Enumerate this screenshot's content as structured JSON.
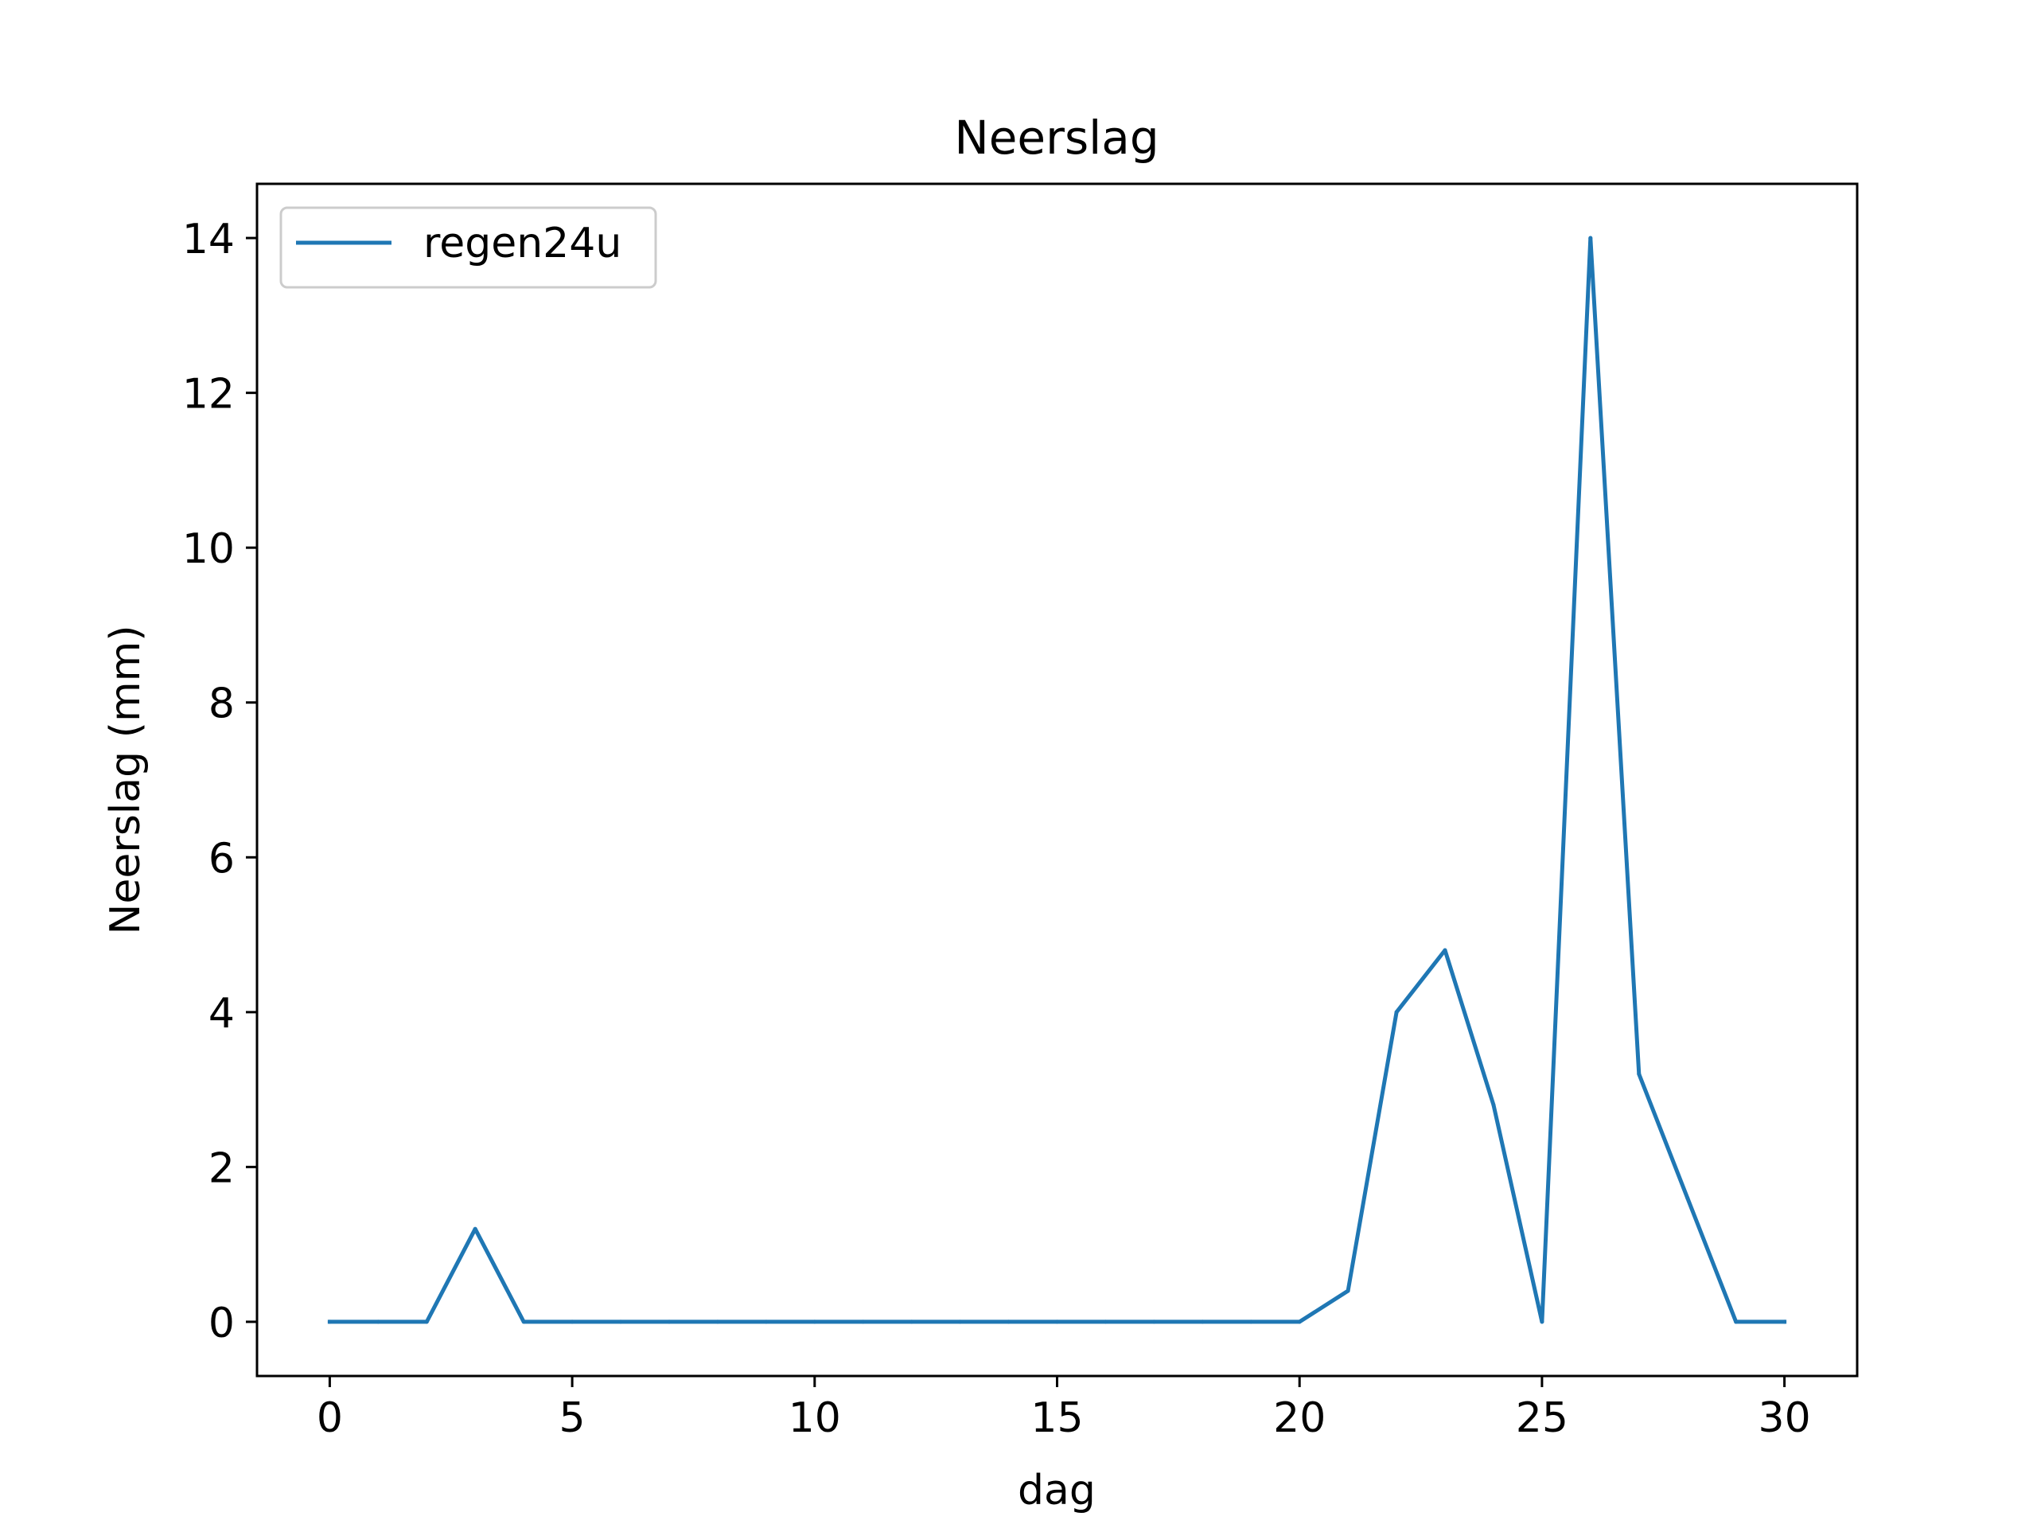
{
  "chart_data": {
    "type": "line",
    "title": "Neerslag",
    "xlabel": "dag",
    "ylabel": "Neerslag (mm)",
    "xlim": [
      -1.5,
      31.5
    ],
    "ylim": [
      -0.7,
      14.7
    ],
    "xticks": [
      0,
      5,
      10,
      15,
      20,
      25,
      30
    ],
    "xtick_labels": [
      "0",
      "5",
      "10",
      "15",
      "20",
      "25",
      "30"
    ],
    "yticks": [
      0,
      2,
      4,
      6,
      8,
      10,
      12,
      14
    ],
    "ytick_labels": [
      "0",
      "2",
      "4",
      "6",
      "8",
      "10",
      "12",
      "14"
    ],
    "grid": false,
    "legend_position": "top-left",
    "series": [
      {
        "name": "regen24u",
        "color": "#1f77b4",
        "x": [
          0,
          1,
          2,
          3,
          4,
          5,
          6,
          7,
          8,
          9,
          10,
          11,
          12,
          13,
          14,
          15,
          16,
          17,
          18,
          19,
          20,
          21,
          22,
          23,
          24,
          25,
          26,
          27,
          28,
          29,
          30
        ],
        "y": [
          0,
          0,
          0,
          1.2,
          0,
          0,
          0,
          0,
          0,
          0,
          0,
          0,
          0,
          0,
          0,
          0,
          0,
          0,
          0,
          0,
          0,
          0.4,
          4.0,
          4.8,
          2.8,
          0,
          14.0,
          3.2,
          1.6,
          0,
          0
        ]
      }
    ]
  }
}
